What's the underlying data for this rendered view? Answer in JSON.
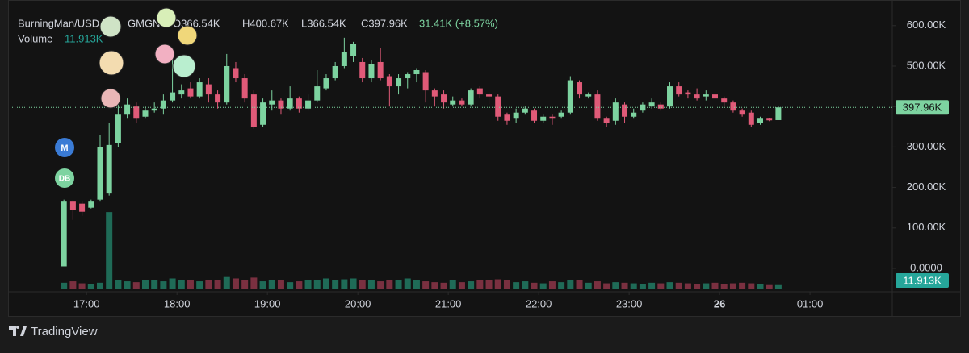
{
  "chart_data": {
    "type": "candlestick",
    "title": "BurningMan/USD",
    "source": "GMGN",
    "header_values": [
      "O366.54K",
      "H400.67K",
      "L366.54K",
      "C397.96K"
    ],
    "change": "31.41K (+8.57%)",
    "volume_title": "Volume",
    "markers": [
      "M",
      "DB"
    ],
    "up_color": "#7dd3a0",
    "down_color": "#e05a78",
    "volume_up_color": "#1f6b57",
    "volume_down_color": "#7a3040",
    "x": [
      16.75,
      16.85,
      16.95,
      17.05,
      17.15,
      17.25,
      17.35,
      17.45,
      17.55,
      17.65,
      17.75,
      17.85,
      17.95,
      18.05,
      18.15,
      18.25,
      18.35,
      18.45,
      18.55,
      18.65,
      18.75,
      18.85,
      18.95,
      19.05,
      19.15,
      19.25,
      19.35,
      19.45,
      19.55,
      19.65,
      19.75,
      19.85,
      19.95,
      20.05,
      20.15,
      20.25,
      20.35,
      20.45,
      20.55,
      20.65,
      20.75,
      20.85,
      20.95,
      21.05,
      21.15,
      21.25,
      21.35,
      21.45,
      21.55,
      21.65,
      21.75,
      21.85,
      21.95,
      22.05,
      22.15,
      22.25,
      22.35,
      22.45,
      22.55,
      22.65,
      22.75,
      22.85,
      22.95,
      23.05,
      23.15,
      23.25,
      23.35,
      23.45,
      23.55,
      23.65,
      23.75,
      23.85,
      23.95,
      24.05,
      24.15,
      24.25,
      24.35,
      24.45,
      24.55,
      24.65
    ],
    "open": [
      5,
      165,
      160,
      150,
      170,
      185,
      310,
      380,
      400,
      375,
      390,
      395,
      415,
      430,
      445,
      425,
      455,
      430,
      410,
      495,
      470,
      430,
      355,
      405,
      415,
      395,
      420,
      395,
      415,
      445,
      470,
      500,
      525,
      510,
      470,
      510,
      475,
      450,
      470,
      480,
      485,
      440,
      430,
      405,
      415,
      405,
      445,
      430,
      425,
      380,
      370,
      385,
      390,
      365,
      375,
      375,
      385,
      460,
      425,
      430,
      370,
      365,
      405,
      375,
      390,
      400,
      405,
      400,
      450,
      435,
      430,
      425,
      430,
      420,
      410,
      390,
      385,
      360,
      370,
      366.54
    ],
    "high": [
      170,
      168,
      165,
      170,
      330,
      360,
      420,
      420,
      410,
      400,
      410,
      430,
      520,
      455,
      460,
      470,
      470,
      440,
      530,
      510,
      480,
      440,
      420,
      440,
      420,
      450,
      425,
      430,
      490,
      480,
      510,
      570,
      560,
      520,
      515,
      545,
      480,
      480,
      485,
      495,
      490,
      445,
      440,
      425,
      420,
      445,
      450,
      435,
      430,
      385,
      395,
      400,
      395,
      380,
      380,
      390,
      475,
      465,
      435,
      440,
      375,
      420,
      410,
      395,
      410,
      420,
      410,
      460,
      460,
      440,
      445,
      440,
      440,
      425,
      415,
      395,
      390,
      375,
      372,
      400.67
    ],
    "low": [
      5,
      120,
      130,
      148,
      165,
      180,
      300,
      370,
      360,
      370,
      385,
      380,
      410,
      420,
      420,
      420,
      410,
      395,
      405,
      460,
      410,
      345,
      350,
      390,
      380,
      390,
      385,
      390,
      410,
      440,
      465,
      495,
      510,
      460,
      460,
      465,
      400,
      430,
      445,
      460,
      410,
      400,
      395,
      400,
      400,
      400,
      420,
      405,
      365,
      355,
      360,
      380,
      360,
      360,
      355,
      370,
      380,
      420,
      420,
      365,
      350,
      355,
      360,
      370,
      385,
      395,
      390,
      395,
      425,
      420,
      415,
      415,
      410,
      400,
      385,
      375,
      350,
      355,
      364,
      366.54
    ],
    "close": [
      165,
      145,
      140,
      165,
      300,
      305,
      380,
      405,
      370,
      390,
      395,
      415,
      435,
      440,
      425,
      460,
      430,
      410,
      500,
      470,
      420,
      350,
      410,
      415,
      395,
      420,
      395,
      415,
      450,
      470,
      500,
      535,
      555,
      470,
      505,
      470,
      450,
      470,
      480,
      490,
      440,
      425,
      410,
      415,
      405,
      440,
      430,
      425,
      375,
      365,
      385,
      395,
      365,
      375,
      370,
      385,
      465,
      430,
      430,
      370,
      360,
      410,
      375,
      385,
      405,
      410,
      395,
      450,
      430,
      430,
      420,
      430,
      420,
      410,
      390,
      380,
      355,
      370,
      366,
      397.96
    ],
    "volume": [
      20,
      25,
      18,
      15,
      20,
      265,
      30,
      25,
      22,
      28,
      30,
      25,
      35,
      28,
      30,
      25,
      30,
      28,
      40,
      35,
      30,
      38,
      25,
      28,
      30,
      22,
      25,
      30,
      28,
      35,
      30,
      32,
      35,
      28,
      30,
      25,
      30,
      28,
      35,
      30,
      25,
      22,
      20,
      28,
      22,
      25,
      30,
      28,
      32,
      30,
      22,
      25,
      20,
      18,
      25,
      22,
      30,
      28,
      20,
      25,
      18,
      22,
      20,
      18,
      15,
      20,
      18,
      22,
      20,
      18,
      15,
      18,
      20,
      15,
      18,
      20,
      18,
      15,
      12,
      11.913
    ],
    "xlim": [
      16.15,
      25.91
    ],
    "xticks": [
      {
        "value": 17,
        "label": "17:00"
      },
      {
        "value": 18,
        "label": "18:00"
      },
      {
        "value": 19,
        "label": "19:00"
      },
      {
        "value": 20,
        "label": "20:00"
      },
      {
        "value": 21,
        "label": "21:00"
      },
      {
        "value": 22,
        "label": "22:00"
      },
      {
        "value": 23,
        "label": "23:00"
      },
      {
        "value": 24,
        "label": "26"
      },
      {
        "value": 25,
        "label": "01:00"
      }
    ],
    "ylim": [
      -49.8,
      663.3
    ],
    "yticks": [
      {
        "value": 0,
        "label": "0.0000"
      },
      {
        "value": 100,
        "label": "100.00K"
      },
      {
        "value": 200,
        "label": "200.00K"
      },
      {
        "value": 300,
        "label": "300.00K"
      },
      {
        "value": 400,
        "label": "400.00K"
      },
      {
        "value": 500,
        "label": "500.00K"
      },
      {
        "value": 600,
        "label": "600.00K"
      }
    ],
    "volume_ylim": [
      0,
      1000
    ],
    "last_price": {
      "value": 397.96,
      "label": "397.96K"
    },
    "last_volume": {
      "value": 11.913,
      "label": "11.913K"
    }
  },
  "footer": {
    "brand": "TradingView"
  }
}
